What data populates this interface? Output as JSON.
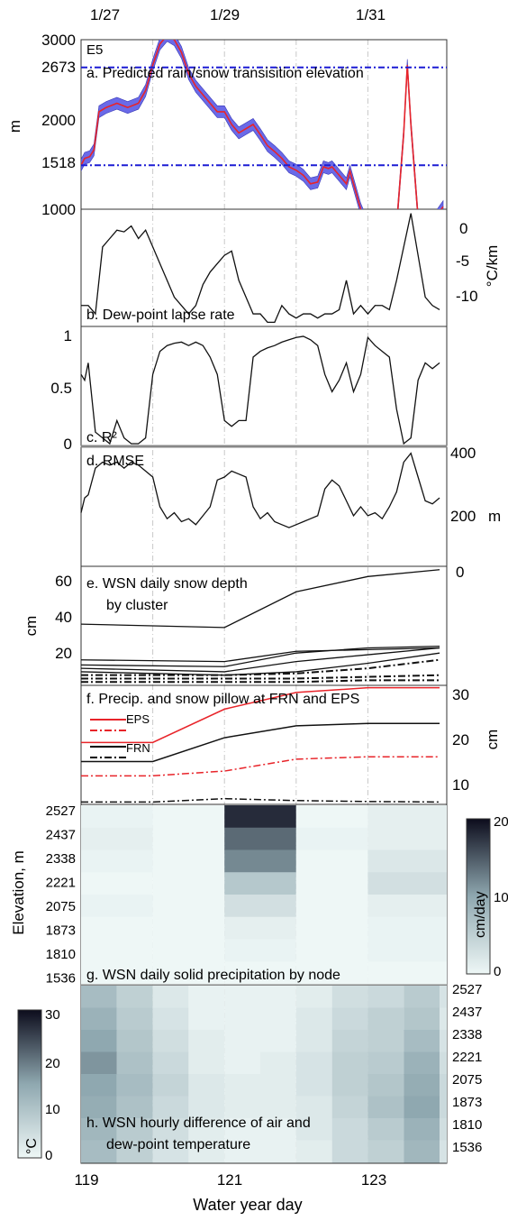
{
  "figure": {
    "top_dates": [
      "1/27",
      "1/29",
      "1/31"
    ],
    "xlabel": "Water year day",
    "xticks": [
      "119",
      "121",
      "123"
    ],
    "xlim": [
      119,
      124.1
    ]
  },
  "panels": {
    "a": {
      "label": "a. Predicted rain/snow transisition elevation",
      "station": "E5",
      "ylabel": "m",
      "yticks": [
        "3000",
        "2673",
        "2000",
        "1518",
        "1000"
      ],
      "ylim": [
        1000,
        3000
      ]
    },
    "b": {
      "label": "b. Dew-point lapse rate",
      "yticks": [
        "0",
        "-5",
        "-10"
      ],
      "ylabel": "°C/km",
      "ylim": [
        -12.5,
        1.5
      ]
    },
    "c": {
      "label": "c. R²",
      "yticks": [
        "1",
        "0.5",
        "0"
      ],
      "ylim": [
        0,
        1
      ]
    },
    "d": {
      "label": "d. RMSE",
      "yticks": [
        "400",
        "200"
      ],
      "ylabel": "m",
      "ylim": [
        0,
        400
      ]
    },
    "e": {
      "label_line1": "e. WSN daily snow depth",
      "label_line2": "by cluster",
      "ylabel": "cm",
      "yticks": [
        "60",
        "40",
        "20"
      ],
      "ylim": [
        0,
        70
      ]
    },
    "f": {
      "label": "f. Precip. and snow pillow at FRN and EPS",
      "ylabel": "cm",
      "yticks": [
        "30",
        "20",
        "10"
      ],
      "ylim": [
        6,
        31
      ],
      "legend": [
        "EPS",
        "FRN"
      ],
      "right_axis_top": "0"
    },
    "g": {
      "label": "g. WSN daily solid precipitation by node",
      "ylabel": "Elevation, m",
      "elevations": [
        "2527",
        "2437",
        "2338",
        "2221",
        "2075",
        "1873",
        "1810",
        "1536"
      ],
      "colorbar_label": "cm/day",
      "colorbar_ticks": [
        "20",
        "10",
        "0"
      ]
    },
    "h": {
      "label_line1": "h. WSN hourly difference of air and",
      "label_line2": "dew-point temperature",
      "elevations": [
        "2527",
        "2437",
        "2338",
        "2221",
        "2075",
        "1873",
        "1810",
        "1536"
      ],
      "colorbar_label": "°C",
      "colorbar_ticks": [
        "30",
        "20",
        "10",
        "0"
      ]
    }
  },
  "colors": {
    "band": "#6a6ae8",
    "predicted_line": "#e8242a",
    "threshold_line": "#1c1cd4",
    "heat_dark": "#141428",
    "heat_light": "#e8f2f2"
  },
  "chart_data": [
    {
      "type": "area",
      "panel": "a",
      "title": "a. Predicted rain/snow transisition elevation",
      "ylabel": "m",
      "ylim": [
        1000,
        3000
      ],
      "thresholds": [
        2673,
        1518
      ],
      "series": [
        {
          "values": [
            [
              119,
              1520
            ],
            [
              119.05,
              1600
            ],
            [
              119.12,
              1620
            ],
            [
              119.18,
              1700
            ],
            [
              119.25,
              2150
            ],
            [
              119.35,
              2200
            ],
            [
              119.5,
              2250
            ],
            [
              119.65,
              2200
            ],
            [
              119.8,
              2250
            ],
            [
              119.9,
              2400
            ],
            [
              120.0,
              2700
            ],
            [
              120.1,
              2950
            ],
            [
              120.2,
              3050
            ],
            [
              120.3,
              3000
            ],
            [
              120.4,
              2850
            ],
            [
              120.5,
              2600
            ],
            [
              120.6,
              2450
            ],
            [
              120.7,
              2350
            ],
            [
              120.8,
              2250
            ],
            [
              120.9,
              2150
            ],
            [
              121.0,
              2150
            ],
            [
              121.1,
              2000
            ],
            [
              121.2,
              1900
            ],
            [
              121.3,
              1950
            ],
            [
              121.4,
              2000
            ],
            [
              121.5,
              1880
            ],
            [
              121.6,
              1750
            ],
            [
              121.7,
              1680
            ],
            [
              121.8,
              1600
            ],
            [
              121.9,
              1500
            ],
            [
              122.0,
              1460
            ],
            [
              122.1,
              1400
            ],
            [
              122.2,
              1300
            ],
            [
              122.3,
              1320
            ],
            [
              122.38,
              1500
            ],
            [
              122.45,
              1480
            ],
            [
              122.5,
              1500
            ],
            [
              122.6,
              1400
            ],
            [
              122.7,
              1300
            ],
            [
              122.75,
              1450
            ],
            [
              122.8,
              1300
            ],
            [
              122.9,
              1000
            ],
            [
              123.0,
              800
            ],
            [
              123.4,
              800
            ],
            [
              123.5,
              1900
            ],
            [
              123.55,
              2700
            ],
            [
              123.6,
              2000
            ],
            [
              123.7,
              900
            ],
            [
              123.9,
              850
            ],
            [
              124.05,
              1030
            ]
          ]
        }
      ]
    },
    {
      "type": "line",
      "panel": "b",
      "title": "b. Dew-point lapse rate",
      "ylabel": "°C/km",
      "ylim": [
        -12.5,
        1.5
      ],
      "x": [
        119,
        119.1,
        119.2,
        119.3,
        119.4,
        119.5,
        119.6,
        119.7,
        119.8,
        119.9,
        120.0,
        120.1,
        120.2,
        120.3,
        120.4,
        120.5,
        120.6,
        120.7,
        120.8,
        120.9,
        121.0,
        121.1,
        121.2,
        121.3,
        121.4,
        121.5,
        121.6,
        121.7,
        121.8,
        121.9,
        122.0,
        122.1,
        122.2,
        122.3,
        122.4,
        122.5,
        122.6,
        122.7,
        122.8,
        122.9,
        123.0,
        123.1,
        123.2,
        123.3,
        123.4,
        123.5,
        123.6,
        123.7,
        123.8,
        123.9,
        124.0
      ],
      "values": [
        -10,
        -10,
        -11,
        -3,
        -2,
        -1,
        -1.2,
        -0.5,
        -2,
        -1,
        -3,
        -5,
        -7,
        -9,
        -10,
        -11,
        -10,
        -7.5,
        -6,
        -5,
        -4,
        -3.5,
        -7,
        -9,
        -11,
        -11,
        -12,
        -12,
        -10,
        -11,
        -11.5,
        -11,
        -11,
        -11.5,
        -11,
        -11,
        -10.5,
        -7,
        -11,
        -10,
        -11,
        -10,
        -10,
        -10.5,
        -7,
        -3,
        1,
        -4,
        -9,
        -10,
        -10.5
      ]
    },
    {
      "type": "line",
      "panel": "c",
      "title": "c. R²",
      "ylim": [
        0,
        1
      ],
      "x": [
        119,
        119.05,
        119.1,
        119.2,
        119.3,
        119.4,
        119.5,
        119.6,
        119.7,
        119.8,
        119.9,
        120.0,
        120.1,
        120.2,
        120.3,
        120.4,
        120.5,
        120.6,
        120.7,
        120.8,
        120.9,
        121.0,
        121.1,
        121.2,
        121.3,
        121.4,
        121.5,
        121.6,
        121.7,
        121.8,
        121.9,
        122.0,
        122.1,
        122.2,
        122.3,
        122.4,
        122.5,
        122.6,
        122.7,
        122.8,
        122.9,
        123.0,
        123.1,
        123.2,
        123.3,
        123.4,
        123.5,
        123.6,
        123.7,
        123.8,
        123.9,
        124.0
      ],
      "values": [
        0.6,
        0.55,
        0.7,
        0.1,
        0.05,
        0.0,
        0.2,
        0.05,
        0.0,
        0.0,
        0.05,
        0.6,
        0.8,
        0.85,
        0.87,
        0.88,
        0.85,
        0.88,
        0.85,
        0.75,
        0.6,
        0.2,
        0.15,
        0.2,
        0.2,
        0.75,
        0.8,
        0.83,
        0.85,
        0.88,
        0.9,
        0.92,
        0.93,
        0.9,
        0.85,
        0.6,
        0.45,
        0.55,
        0.7,
        0.45,
        0.6,
        0.92,
        0.85,
        0.8,
        0.75,
        0.3,
        0.0,
        0.05,
        0.55,
        0.7,
        0.65,
        0.7
      ]
    },
    {
      "type": "line",
      "panel": "d",
      "title": "d. RMSE",
      "ylabel": "m",
      "ylim": [
        0,
        400
      ],
      "x": [
        119,
        119.05,
        119.1,
        119.2,
        119.3,
        119.4,
        119.5,
        119.6,
        119.7,
        119.8,
        119.9,
        120.0,
        120.1,
        120.2,
        120.3,
        120.4,
        120.5,
        120.6,
        120.7,
        120.8,
        120.9,
        121.0,
        121.1,
        121.2,
        121.3,
        121.4,
        121.5,
        121.6,
        121.7,
        121.8,
        121.9,
        122.0,
        122.1,
        122.2,
        122.3,
        122.4,
        122.5,
        122.6,
        122.7,
        122.8,
        122.9,
        123.0,
        123.1,
        123.2,
        123.3,
        123.4,
        123.5,
        123.6,
        123.7,
        123.8,
        123.9,
        124.0
      ],
      "values": [
        180,
        230,
        240,
        330,
        350,
        340,
        350,
        330,
        350,
        340,
        320,
        300,
        200,
        160,
        180,
        150,
        160,
        140,
        170,
        200,
        290,
        300,
        320,
        310,
        300,
        200,
        160,
        180,
        150,
        140,
        130,
        140,
        150,
        160,
        170,
        260,
        290,
        270,
        220,
        170,
        200,
        170,
        180,
        160,
        200,
        250,
        350,
        380,
        300,
        220,
        210,
        230
      ]
    },
    {
      "type": "line",
      "panel": "e",
      "title": "e. WSN daily snow depth by cluster",
      "ylabel": "cm",
      "ylim": [
        0,
        70
      ],
      "x": [
        119,
        121,
        122,
        123,
        124
      ],
      "series": [
        {
          "values": [
            36,
            34,
            55,
            64,
            68
          ]
        },
        {
          "values": [
            15,
            14,
            20,
            21,
            22
          ]
        },
        {
          "values": [
            12,
            11,
            19,
            22,
            23
          ]
        },
        {
          "values": [
            10,
            8,
            14,
            18,
            22
          ]
        },
        {
          "values": [
            8,
            6,
            8,
            13,
            19
          ]
        },
        {
          "values": [
            6,
            6,
            7,
            10,
            15
          ]
        },
        {
          "values": [
            4,
            4,
            4,
            5,
            6
          ]
        },
        {
          "values": [
            2,
            2,
            2,
            3,
            3
          ]
        }
      ]
    },
    {
      "type": "line",
      "panel": "f",
      "title": "f. Precip. and snow pillow at FRN and EPS",
      "ylabel": "cm",
      "ylim": [
        6,
        31
      ],
      "x": [
        119,
        120,
        121,
        122,
        123,
        124
      ],
      "series": [
        {
          "name": "EPS",
          "values": [
            19,
            19,
            26,
            29.5,
            30.5,
            30.5
          ]
        },
        {
          "name": "EPS",
          "values": [
            12,
            12,
            13,
            15.5,
            16,
            16
          ]
        },
        {
          "name": "FRN",
          "values": [
            15,
            15,
            20,
            22.5,
            23,
            23
          ]
        },
        {
          "name": "FRN",
          "values": [
            6.5,
            6.5,
            7.2,
            6.8,
            6.6,
            6.5
          ]
        }
      ]
    },
    {
      "type": "heatmap",
      "panel": "g",
      "title": "g. WSN daily solid precipitation by node",
      "ylabel": "Elevation, m",
      "columns": [
        "119",
        "120",
        "121",
        "122",
        "123"
      ],
      "rows": [
        "2527",
        "2437",
        "2338",
        "2221",
        "2075",
        "1873",
        "1810",
        "1536"
      ],
      "values": [
        [
          0.5,
          0,
          18,
          0,
          1
        ],
        [
          1,
          0,
          14,
          0.5,
          1
        ],
        [
          0.5,
          0,
          12,
          0,
          2
        ],
        [
          0,
          0,
          6,
          0,
          3
        ],
        [
          0.5,
          0,
          3,
          0,
          1
        ],
        [
          0,
          0,
          1,
          0,
          0.5
        ],
        [
          0,
          0,
          0.5,
          0,
          0.5
        ],
        [
          0,
          0,
          0,
          0,
          0
        ]
      ],
      "clim": [
        0,
        20
      ]
    },
    {
      "type": "heatmap",
      "panel": "h",
      "title": "h. WSN hourly difference of air and dew-point temperature",
      "columns": [
        "119",
        "119.5",
        "120",
        "120.5",
        "121",
        "121.5",
        "122",
        "122.5",
        "123",
        "123.5",
        "124"
      ],
      "rows": [
        "2527",
        "2437",
        "2338",
        "2221",
        "2075",
        "1873",
        "1810",
        "1536"
      ],
      "values": [
        [
          12,
          8,
          3,
          1,
          1,
          1,
          2,
          5,
          6,
          9,
          4
        ],
        [
          14,
          9,
          4,
          1,
          1,
          1,
          3,
          6,
          8,
          10,
          3
        ],
        [
          16,
          10,
          5,
          2,
          1,
          1,
          3,
          7,
          8,
          12,
          4
        ],
        [
          18,
          11,
          6,
          2,
          1,
          2,
          4,
          8,
          9,
          14,
          5
        ],
        [
          16,
          12,
          7,
          3,
          2,
          2,
          4,
          8,
          10,
          15,
          6
        ],
        [
          15,
          11,
          6,
          3,
          2,
          2,
          3,
          7,
          11,
          16,
          6
        ],
        [
          13,
          9,
          5,
          2,
          1,
          1,
          3,
          6,
          9,
          14,
          5
        ],
        [
          12,
          8,
          4,
          2,
          1,
          1,
          2,
          6,
          8,
          13,
          4
        ]
      ],
      "clim": [
        0,
        32
      ]
    }
  ]
}
